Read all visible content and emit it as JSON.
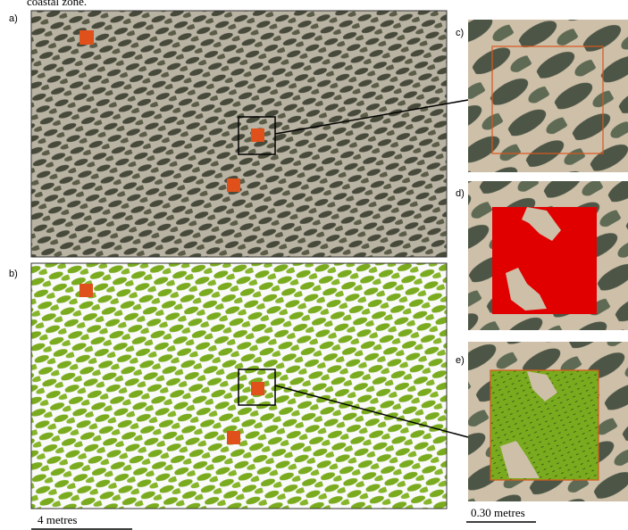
{
  "caption_fragment": "coastal zone.",
  "panels": [
    {
      "label": "a)"
    },
    {
      "label": "b)"
    },
    {
      "label": "c)"
    },
    {
      "label": "d)"
    },
    {
      "label": "e)"
    }
  ],
  "scale_bars": [
    {
      "label": "4 metres"
    },
    {
      "label": "0.30 metres"
    }
  ]
}
